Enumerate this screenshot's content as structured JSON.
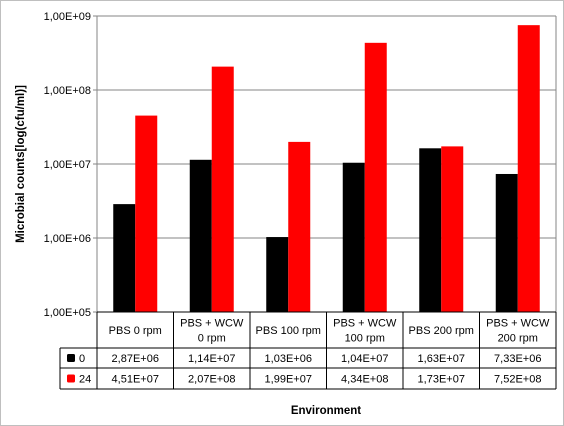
{
  "chart_data": {
    "type": "bar",
    "xlabel": "Environment",
    "ylabel": "Microbial counts[log(cfu/ml)]",
    "yscale": "log",
    "ylim": [
      100000,
      1000000000
    ],
    "yticks": [
      {
        "value": 100000,
        "label": "1,00E+05"
      },
      {
        "value": 1000000,
        "label": "1,00E+06"
      },
      {
        "value": 10000000,
        "label": "1,00E+07"
      },
      {
        "value": 100000000,
        "label": "1,00E+08"
      },
      {
        "value": 1000000000,
        "label": "1,00E+09"
      }
    ],
    "grid": true,
    "legend_position": "in data table",
    "categories": [
      [
        "PBS 0 rpm"
      ],
      [
        "PBS + WCW",
        "0 rpm"
      ],
      [
        "PBS 100 rpm"
      ],
      [
        "PBS + WCW",
        "100 rpm"
      ],
      [
        "PBS 200 rpm"
      ],
      [
        "PBS + WCW",
        "200 rpm"
      ]
    ],
    "series": [
      {
        "name": "0",
        "color": "#000000",
        "values": [
          2870000,
          11400000,
          1030000,
          10400000,
          16300000,
          7330000
        ],
        "labels": [
          "2,87E+06",
          "1,14E+07",
          "1,03E+06",
          "1,04E+07",
          "1,63E+07",
          "7,33E+06"
        ]
      },
      {
        "name": "24",
        "color": "#ff0000",
        "values": [
          45100000,
          207000000,
          19900000,
          434000000,
          17300000,
          752000000
        ],
        "labels": [
          "4,51E+07",
          "2,07E+08",
          "1,99E+07",
          "4,34E+08",
          "1,73E+07",
          "7,52E+08"
        ]
      }
    ]
  }
}
